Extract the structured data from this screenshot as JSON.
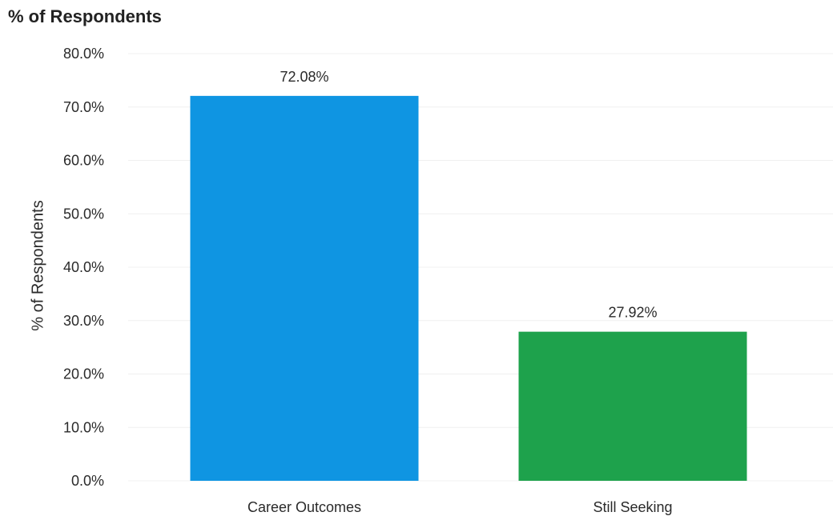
{
  "chart_data": {
    "type": "bar",
    "title": "% of Respondents",
    "ylabel": "% of Respondents",
    "xlabel": "",
    "categories": [
      "Career Outcomes",
      "Still Seeking"
    ],
    "values": [
      72.08,
      27.92
    ],
    "data_labels": [
      "72.08%",
      "27.92%"
    ],
    "colors": [
      "#0f95e2",
      "#1ea24c"
    ],
    "ylim": [
      0,
      80
    ],
    "yticks": [
      0,
      10,
      20,
      30,
      40,
      50,
      60,
      70,
      80
    ],
    "ytick_labels": [
      "0.0%",
      "10.0%",
      "20.0%",
      "30.0%",
      "40.0%",
      "50.0%",
      "60.0%",
      "70.0%",
      "80.0%"
    ],
    "grid": true,
    "legend": "none"
  }
}
